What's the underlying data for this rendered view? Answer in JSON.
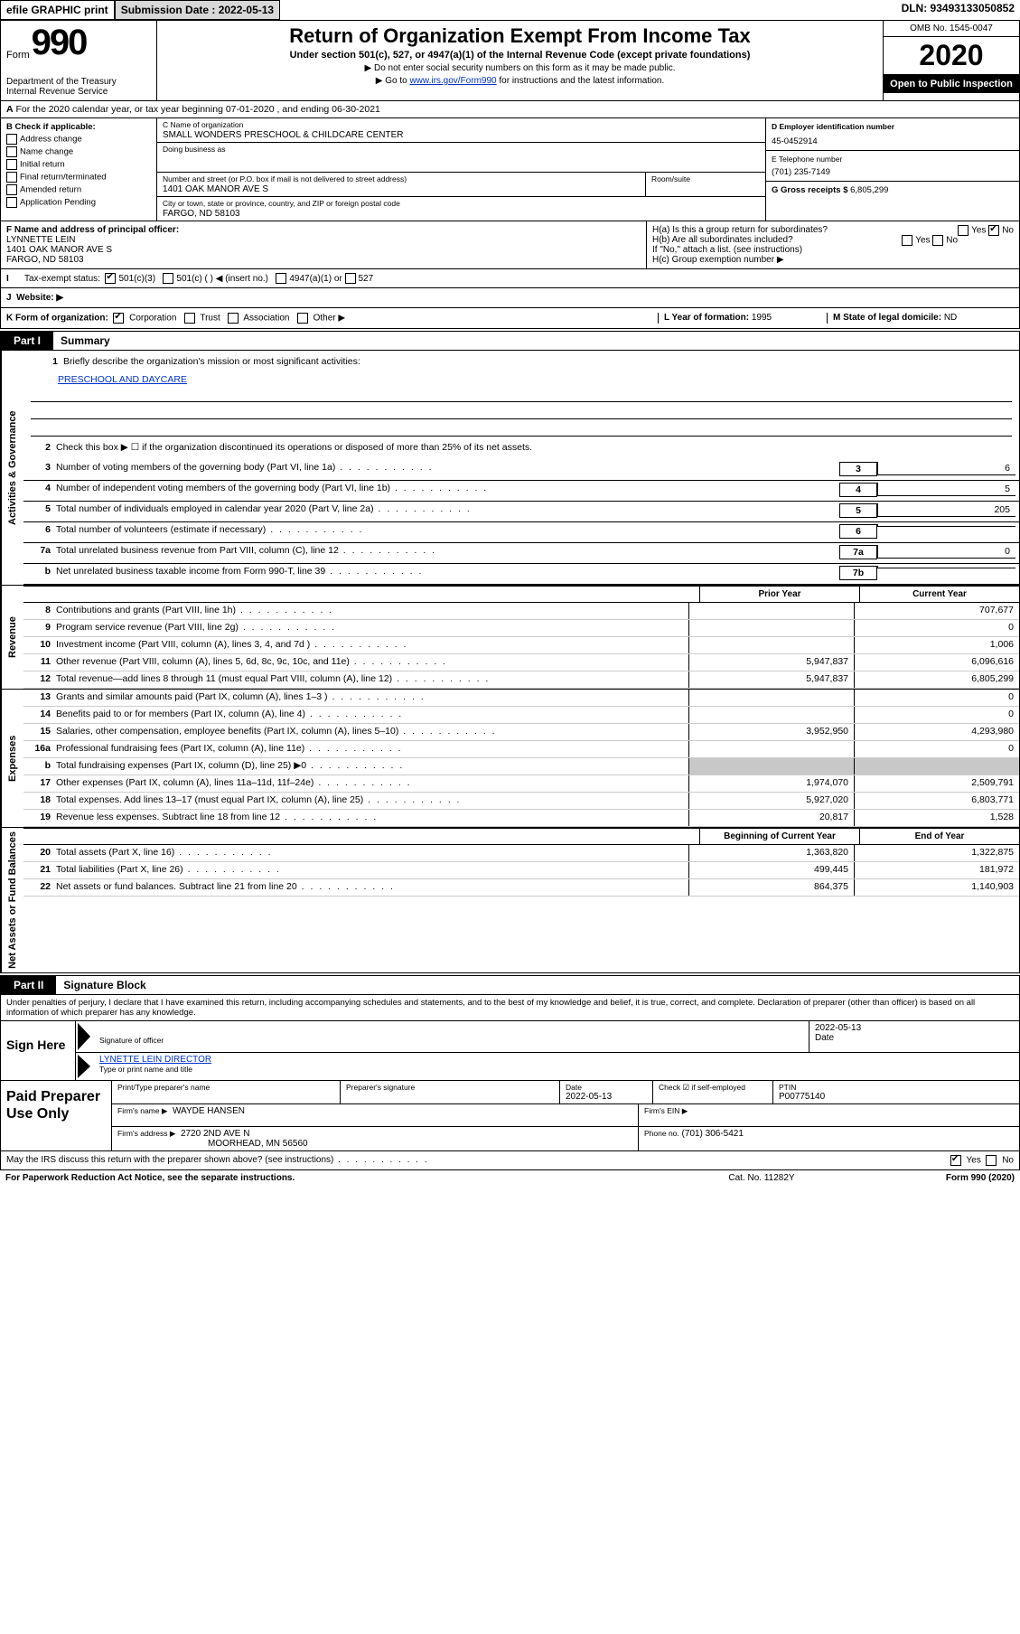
{
  "topbar": {
    "efile": "efile GRAPHIC print",
    "submission_label": "Submission Date : 2022-05-13",
    "dln": "DLN: 93493133050852"
  },
  "header": {
    "form_label": "Form",
    "form_number": "990",
    "dept1": "Department of the Treasury",
    "dept2": "Internal Revenue Service",
    "title": "Return of Organization Exempt From Income Tax",
    "sub1": "Under section 501(c), 527, or 4947(a)(1) of the Internal Revenue Code (except private foundations)",
    "sub2": "Do not enter social security numbers on this form as it may be made public.",
    "sub3_pre": "Go to ",
    "sub3_link": "www.irs.gov/Form990",
    "sub3_post": " for instructions and the latest information.",
    "omb": "OMB No. 1545-0047",
    "year": "2020",
    "open": "Open to Public Inspection"
  },
  "row_a": "For the 2020 calendar year, or tax year beginning 07-01-2020    , and ending 06-30-2021",
  "section_b": {
    "label": "B Check if applicable:",
    "opts": [
      "Address change",
      "Name change",
      "Initial return",
      "Final return/terminated",
      "Amended return",
      "Application Pending"
    ]
  },
  "section_c": {
    "name_label": "C Name of organization",
    "name": "SMALL WONDERS PRESCHOOL & CHILDCARE CENTER",
    "dba_label": "Doing business as",
    "dba": "",
    "street_label": "Number and street (or P.O. box if mail is not delivered to street address)",
    "street": "1401 OAK MANOR AVE S",
    "room_label": "Room/suite",
    "city_label": "City or town, state or province, country, and ZIP or foreign postal code",
    "city": "FARGO, ND  58103"
  },
  "section_d": {
    "label": "D Employer identification number",
    "ein": "45-0452914"
  },
  "section_e": {
    "label": "E Telephone number",
    "phone": "(701) 235-7149"
  },
  "section_g": {
    "label": "G Gross receipts $",
    "val": "6,805,299"
  },
  "section_f": {
    "label": "F Name and address of principal officer:",
    "name": "LYNNETTE LEIN",
    "addr1": "1401 OAK MANOR AVE S",
    "addr2": "FARGO, ND  58103"
  },
  "section_h": {
    "ha": "H(a)  Is this a group return for subordinates?",
    "hb": "H(b)  Are all subordinates included?",
    "hb_note": "If \"No,\" attach a list. (see instructions)",
    "hc": "H(c)  Group exemption number ▶",
    "yes": "Yes",
    "no": "No"
  },
  "tax_exempt": {
    "label": "Tax-exempt status:",
    "opt1": "501(c)(3)",
    "opt2": "501(c) (  ) ◀ (insert no.)",
    "opt3": "4947(a)(1) or",
    "opt4": "527"
  },
  "row_j": {
    "label": "J",
    "text": "Website: ▶"
  },
  "row_k": {
    "label": "K Form of organization:",
    "opts": [
      "Corporation",
      "Trust",
      "Association",
      "Other ▶"
    ],
    "l_label": "L Year of formation: ",
    "l_val": "1995",
    "m_label": "M State of legal domicile: ",
    "m_val": "ND"
  },
  "part1": {
    "tab": "Part I",
    "title": "Summary"
  },
  "governance": {
    "side": "Activities & Governance",
    "l1_text": "Briefly describe the organization's mission or most significant activities:",
    "l1_val": "PRESCHOOL AND DAYCARE",
    "l2_text": "Check this box ▶ ☐  if the organization discontinued its operations or disposed of more than 25% of its net assets.",
    "rows": [
      {
        "n": "3",
        "t": "Number of voting members of the governing body (Part VI, line 1a)",
        "box": "3",
        "v": "6"
      },
      {
        "n": "4",
        "t": "Number of independent voting members of the governing body (Part VI, line 1b)",
        "box": "4",
        "v": "5"
      },
      {
        "n": "5",
        "t": "Total number of individuals employed in calendar year 2020 (Part V, line 2a)",
        "box": "5",
        "v": "205"
      },
      {
        "n": "6",
        "t": "Total number of volunteers (estimate if necessary)",
        "box": "6",
        "v": ""
      },
      {
        "n": "7a",
        "t": "Total unrelated business revenue from Part VIII, column (C), line 12",
        "box": "7a",
        "v": "0"
      },
      {
        "n": "b",
        "t": "Net unrelated business taxable income from Form 990-T, line 39",
        "box": "7b",
        "v": ""
      }
    ]
  },
  "fin_header": {
    "prior": "Prior Year",
    "curr": "Current Year"
  },
  "revenue": {
    "side": "Revenue",
    "rows": [
      {
        "n": "8",
        "t": "Contributions and grants (Part VIII, line 1h)",
        "p": "",
        "c": "707,677"
      },
      {
        "n": "9",
        "t": "Program service revenue (Part VIII, line 2g)",
        "p": "",
        "c": "0"
      },
      {
        "n": "10",
        "t": "Investment income (Part VIII, column (A), lines 3, 4, and 7d )",
        "p": "",
        "c": "1,006"
      },
      {
        "n": "11",
        "t": "Other revenue (Part VIII, column (A), lines 5, 6d, 8c, 9c, 10c, and 11e)",
        "p": "5,947,837",
        "c": "6,096,616"
      },
      {
        "n": "12",
        "t": "Total revenue—add lines 8 through 11 (must equal Part VIII, column (A), line 12)",
        "p": "5,947,837",
        "c": "6,805,299"
      }
    ]
  },
  "expenses": {
    "side": "Expenses",
    "rows": [
      {
        "n": "13",
        "t": "Grants and similar amounts paid (Part IX, column (A), lines 1–3 )",
        "p": "",
        "c": "0"
      },
      {
        "n": "14",
        "t": "Benefits paid to or for members (Part IX, column (A), line 4)",
        "p": "",
        "c": "0"
      },
      {
        "n": "15",
        "t": "Salaries, other compensation, employee benefits (Part IX, column (A), lines 5–10)",
        "p": "3,952,950",
        "c": "4,293,980"
      },
      {
        "n": "16a",
        "t": "Professional fundraising fees (Part IX, column (A), line 11e)",
        "p": "",
        "c": "0"
      },
      {
        "n": "b",
        "t": "Total fundraising expenses (Part IX, column (D), line 25) ▶0",
        "p": "shaded",
        "c": "shaded"
      },
      {
        "n": "17",
        "t": "Other expenses (Part IX, column (A), lines 11a–11d, 11f–24e)",
        "p": "1,974,070",
        "c": "2,509,791"
      },
      {
        "n": "18",
        "t": "Total expenses. Add lines 13–17 (must equal Part IX, column (A), line 25)",
        "p": "5,927,020",
        "c": "6,803,771"
      },
      {
        "n": "19",
        "t": "Revenue less expenses. Subtract line 18 from line 12",
        "p": "20,817",
        "c": "1,528"
      }
    ]
  },
  "netassets_header": {
    "prior": "Beginning of Current Year",
    "curr": "End of Year"
  },
  "netassets": {
    "side": "Net Assets or Fund Balances",
    "rows": [
      {
        "n": "20",
        "t": "Total assets (Part X, line 16)",
        "p": "1,363,820",
        "c": "1,322,875"
      },
      {
        "n": "21",
        "t": "Total liabilities (Part X, line 26)",
        "p": "499,445",
        "c": "181,972"
      },
      {
        "n": "22",
        "t": "Net assets or fund balances. Subtract line 21 from line 20",
        "p": "864,375",
        "c": "1,140,903"
      }
    ]
  },
  "part2": {
    "tab": "Part II",
    "title": "Signature Block"
  },
  "perjury": "Under penalties of perjury, I declare that I have examined this return, including accompanying schedules and statements, and to the best of my knowledge and belief, it is true, correct, and complete. Declaration of preparer (other than officer) is based on all information of which preparer has any knowledge.",
  "sign": {
    "left": "Sign Here",
    "sig_line": "Signature of officer",
    "date_val": "2022-05-13",
    "date_lbl": "Date",
    "name": "LYNETTE LEIN  DIRECTOR",
    "name_lbl": "Type or print name and title"
  },
  "paid": {
    "left": "Paid Preparer Use Only",
    "h1": "Print/Type preparer's name",
    "h2": "Preparer's signature",
    "h3": "Date",
    "h3v": "2022-05-13",
    "h4": "Check ☑ if self-employed",
    "h5": "PTIN",
    "h5v": "P00775140",
    "firm_name_lbl": "Firm's name    ▶",
    "firm_name": "WAYDE HANSEN",
    "firm_ein_lbl": "Firm's EIN ▶",
    "firm_addr_lbl": "Firm's address ▶",
    "firm_addr1": "2720 2ND AVE N",
    "firm_addr2": "MOORHEAD, MN  56560",
    "phone_lbl": "Phone no.",
    "phone": "(701) 306-5421"
  },
  "irs_discuss": {
    "text": "May the IRS discuss this return with the preparer shown above? (see instructions)",
    "yes": "Yes",
    "no": "No"
  },
  "footer": {
    "left": "For Paperwork Reduction Act Notice, see the separate instructions.",
    "center": "Cat. No. 11282Y",
    "right": "Form 990 (2020)"
  },
  "labels": {
    "i": "I",
    "a": "A"
  }
}
